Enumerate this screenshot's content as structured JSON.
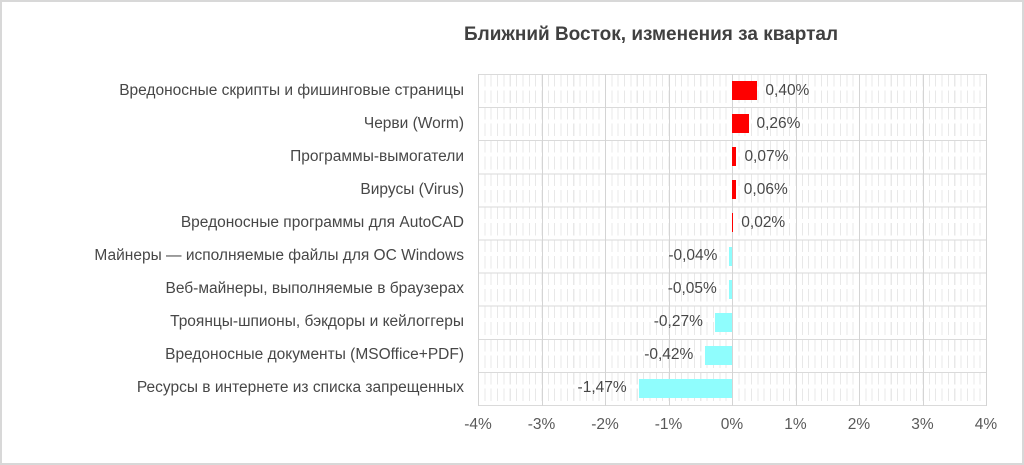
{
  "chart_data": {
    "type": "bar",
    "orientation": "horizontal",
    "title": "Ближний Восток, изменения за квартал",
    "categories": [
      "Вредоносные скрипты и фишинговые страницы",
      "Черви (Worm)",
      "Программы-вымогатели",
      "Вирусы (Virus)",
      "Вредоносные программы для AutoCAD",
      "Майнеры — исполняемые файлы для ОС Windows",
      "Веб-майнеры, выполняемые в браузерах",
      "Троянцы-шпионы, бэкдоры и кейлоггеры",
      "Вредоносные документы (MSOffice+PDF)",
      "Ресурсы в интернете из списка запрещенных"
    ],
    "values": [
      0.4,
      0.26,
      0.07,
      0.06,
      0.02,
      -0.04,
      -0.05,
      -0.27,
      -0.42,
      -1.47
    ],
    "value_labels": [
      "0,40%",
      "0,26%",
      "0,07%",
      "0,06%",
      "0,02%",
      "-0,04%",
      "-0,05%",
      "-0,27%",
      "-0,42%",
      "-1,47%"
    ],
    "xlabel": "",
    "ylabel": "",
    "xlim": [
      -4,
      4
    ],
    "x_tick_values": [
      -4,
      -3,
      -2,
      -1,
      0,
      1,
      2,
      3,
      4
    ],
    "x_tick_labels": [
      "-4%",
      "-3%",
      "-2%",
      "-1%",
      "0%",
      "1%",
      "2%",
      "3%",
      "4%"
    ],
    "minor_grid_step": 0.1,
    "grid": "major-and-minor-vertical, category-row-lines",
    "legend_position": "none",
    "data_label_position": "outside-end",
    "colors": {
      "positive_bar": "#fe0000",
      "negative_bar": "#8ffdfd",
      "major_grid": "#d4d4d4",
      "minor_grid": "#e8e8e8",
      "row_grid": "#dadada",
      "title_text": "#404040",
      "label_text": "#474747",
      "tick_text": "#595959",
      "frame_border": "#d8d8d8",
      "background": "#ffffff"
    }
  }
}
